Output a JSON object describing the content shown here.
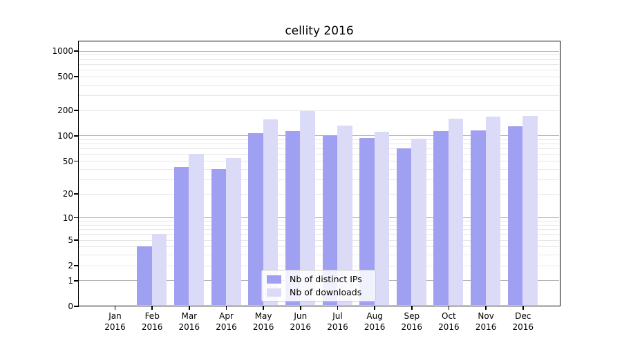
{
  "title": "cellity 2016",
  "legend": {
    "items": [
      {
        "label": "Nb of distinct IPs",
        "color": "#a0a0f2"
      },
      {
        "label": "Nb of downloads",
        "color": "#dbdbf8"
      }
    ]
  },
  "y_axis": {
    "tick_labels": [
      "0",
      "1",
      "2",
      "5",
      "10",
      "20",
      "50",
      "100",
      "200",
      "500",
      "1000"
    ]
  },
  "chart_data": {
    "type": "bar",
    "title": "cellity 2016",
    "categories": [
      "Jan 2016",
      "Feb 2016",
      "Mar 2016",
      "Apr 2016",
      "May 2016",
      "Jun 2016",
      "Jul 2016",
      "Aug 2016",
      "Sep 2016",
      "Oct 2016",
      "Nov 2016",
      "Dec 2016"
    ],
    "series": [
      {
        "name": "Nb of distinct IPs",
        "color": "#a0a0f2",
        "values": [
          0,
          4,
          42,
          40,
          107,
          112,
          100,
          93,
          70,
          112,
          115,
          129
        ]
      },
      {
        "name": "Nb of downloads",
        "color": "#dbdbf8",
        "values": [
          0,
          6,
          61,
          54,
          155,
          196,
          132,
          110,
          91,
          157,
          166,
          171
        ]
      }
    ],
    "xlabel": "",
    "ylabel": "",
    "yscale": "log1p",
    "y_ticks": [
      0,
      1,
      2,
      5,
      10,
      20,
      50,
      100,
      200,
      500,
      1000
    ],
    "y_major_gridlines": [
      1,
      10,
      100,
      1000
    ],
    "ylim": [
      0,
      1300
    ],
    "grid": true,
    "legend_position": "lower center"
  }
}
